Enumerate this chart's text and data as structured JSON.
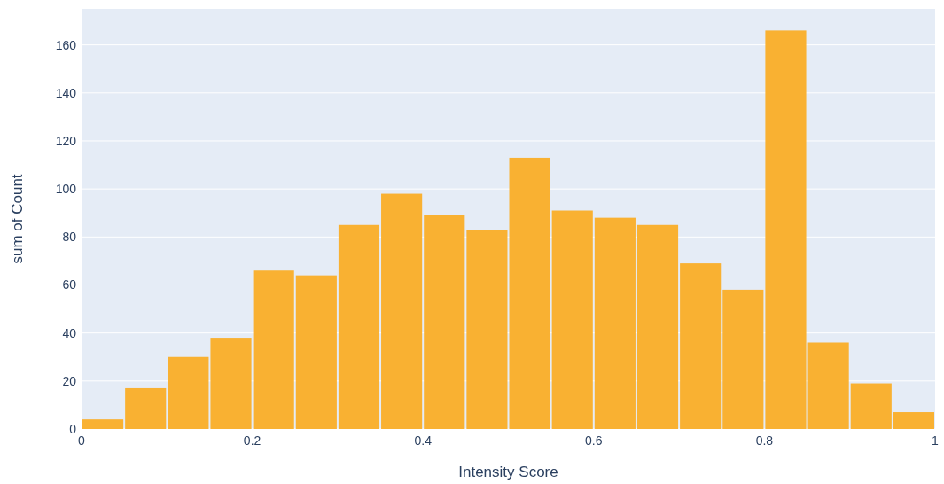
{
  "chart_data": {
    "type": "histogram",
    "xlabel": "Intensity Score",
    "ylabel": "sum of Count",
    "bins": [
      0,
      0.05,
      0.1,
      0.15,
      0.2,
      0.25,
      0.3,
      0.35,
      0.4,
      0.45,
      0.5,
      0.55,
      0.6,
      0.65,
      0.7,
      0.75,
      0.8,
      0.85,
      0.9,
      0.95,
      1
    ],
    "values": [
      4,
      17,
      30,
      38,
      66,
      64,
      85,
      98,
      89,
      83,
      113,
      91,
      88,
      85,
      69,
      58,
      166,
      36,
      19,
      7
    ],
    "color": "#f9b132",
    "xlim": [
      0,
      1
    ],
    "xticks": [
      0,
      0.2,
      0.4,
      0.6,
      0.8,
      1
    ],
    "ylim": [
      0,
      175
    ],
    "yticks": [
      0,
      20,
      40,
      60,
      80,
      100,
      120,
      140,
      160
    ],
    "grid": "y"
  }
}
